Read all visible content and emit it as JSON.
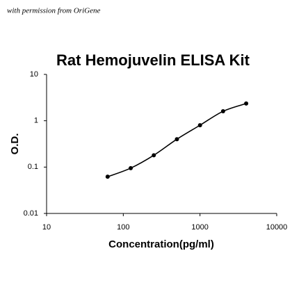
{
  "chart_data": {
    "type": "scatter",
    "annotation": "with permission from OriGene",
    "title": "Rat Hemojuvelin ELISA Kit",
    "x_label": "Concentration(pg/ml)",
    "y_label": "O.D.",
    "x": [
      62.5,
      125,
      250,
      500,
      1000,
      2000,
      4000
    ],
    "values": [
      0.062,
      0.095,
      0.18,
      0.4,
      0.8,
      1.6,
      2.35
    ],
    "color": "#000000",
    "xscale": "log",
    "yscale": "log",
    "xlim": [
      10,
      10000
    ],
    "ylim": [
      0.01,
      10
    ],
    "xticks": [
      10,
      100,
      1000,
      10000
    ],
    "yticks": [
      0.01,
      0.1,
      1,
      10
    ],
    "fit_curve": true
  }
}
